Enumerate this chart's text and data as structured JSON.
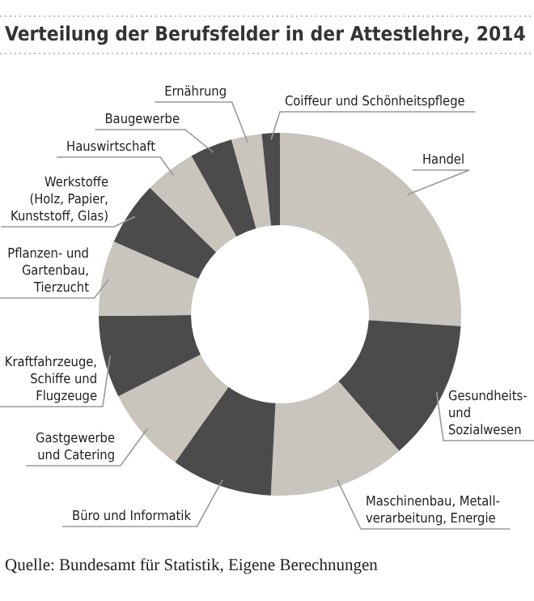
{
  "chart_data": {
    "type": "donut",
    "title": "Verteilung der Berufsfelder in der Attestlehre, 2014",
    "categories": [
      "Handel",
      "Gesundheits-\nund\nSozialwesen",
      "Maschinenbau, Metall-\nverarbeitung, Energie",
      "Büro und Informatik",
      "Gastgewerbe\nund Catering",
      "Kraftfahrzeuge,\nSchiffe und\nFlugzeuge",
      "Pflanzen- und\nGartenbau,\nTierzucht",
      "Werkstoffe\n(Holz, Papier,\nKunststoff, Glas)",
      "Hauswirtschaft",
      "Baugewerbe",
      "Ernährung",
      "Coiffeur und Schönheitspflege"
    ],
    "values": [
      26,
      12.5,
      12.2,
      9,
      7.7,
      7.3,
      6.7,
      5.7,
      4.6,
      3.8,
      2.7,
      1.6
    ],
    "colors": [
      "#c9c4bc",
      "#4b4b4b",
      "#c9c4bc",
      "#4b4b4b",
      "#c9c4bc",
      "#4b4b4b",
      "#c9c4bc",
      "#4b4b4b",
      "#c9c4bc",
      "#4b4b4b",
      "#c9c4bc",
      "#4b4b4b"
    ],
    "annotations": [
      "Quelle: Bundesamt für Statistik, Eigene Berechnungen"
    ]
  }
}
